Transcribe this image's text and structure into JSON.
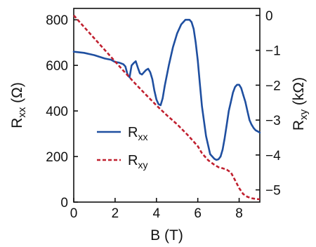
{
  "chart_data": {
    "type": "line",
    "title": "",
    "xlabel": "B (T)",
    "ylabel_left": {
      "main": "R",
      "sub": "xx",
      "unit": " (Ω)"
    },
    "ylabel_right": {
      "main": "R",
      "sub": "xy",
      "unit": " (kΩ)"
    },
    "xlim": [
      0,
      9
    ],
    "ylim_left": [
      0,
      850
    ],
    "ylim_right": [
      -5.35,
      0.2
    ],
    "x_ticks": [
      0,
      2,
      4,
      6,
      8
    ],
    "y_ticks_left": [
      0,
      200,
      400,
      600,
      800
    ],
    "y_ticks_right": [
      0,
      -1,
      -2,
      -3,
      -4,
      -5
    ],
    "grid": false,
    "legend_position": "center-left",
    "series": [
      {
        "name": "R",
        "name_sub": "xx",
        "axis": "left",
        "color": "#1f4fa0",
        "style": "solid",
        "x": [
          0,
          0.5,
          1.0,
          1.5,
          1.8,
          2.0,
          2.2,
          2.4,
          2.5,
          2.6,
          2.7,
          2.8,
          2.9,
          3.0,
          3.1,
          3.2,
          3.3,
          3.4,
          3.5,
          3.6,
          3.7,
          3.8,
          3.9,
          4.0,
          4.1,
          4.2,
          4.3,
          4.4,
          4.6,
          4.8,
          5.0,
          5.2,
          5.4,
          5.6,
          5.7,
          5.8,
          5.9,
          6.0,
          6.1,
          6.2,
          6.4,
          6.6,
          6.8,
          6.9,
          7.0,
          7.1,
          7.2,
          7.3,
          7.4,
          7.5,
          7.6,
          7.7,
          7.8,
          7.9,
          8.0,
          8.1,
          8.2,
          8.3,
          8.4,
          8.5,
          8.6,
          8.7,
          8.8,
          8.9,
          9.0
        ],
        "y": [
          660,
          655,
          645,
          630,
          625,
          615,
          612,
          605,
          595,
          560,
          548,
          600,
          610,
          618,
          590,
          565,
          560,
          570,
          580,
          585,
          570,
          540,
          490,
          450,
          430,
          425,
          455,
          510,
          600,
          680,
          740,
          780,
          800,
          800,
          790,
          760,
          700,
          620,
          520,
          420,
          290,
          210,
          190,
          185,
          188,
          200,
          230,
          280,
          340,
          400,
          440,
          480,
          505,
          515,
          515,
          500,
          470,
          440,
          400,
          360,
          340,
          325,
          315,
          310,
          305
        ]
      },
      {
        "name": "R",
        "name_sub": "xy",
        "axis": "right",
        "color": "#c0202f",
        "style": "dashed",
        "x": [
          0,
          0.5,
          1.0,
          1.5,
          2.0,
          2.5,
          3.0,
          3.5,
          4.0,
          4.5,
          5.0,
          5.5,
          6.0,
          6.2,
          6.5,
          6.8,
          7.0,
          7.2,
          7.4,
          7.6,
          7.8,
          8.0,
          8.2,
          8.4,
          8.6,
          8.8,
          9.0
        ],
        "y": [
          0.0,
          -0.33,
          -0.66,
          -0.99,
          -1.32,
          -1.65,
          -1.97,
          -2.28,
          -2.58,
          -2.86,
          -3.12,
          -3.42,
          -3.75,
          -3.95,
          -4.15,
          -4.28,
          -4.35,
          -4.38,
          -4.42,
          -4.5,
          -4.72,
          -4.95,
          -5.12,
          -5.2,
          -5.24,
          -5.26,
          -5.27
        ]
      }
    ]
  }
}
